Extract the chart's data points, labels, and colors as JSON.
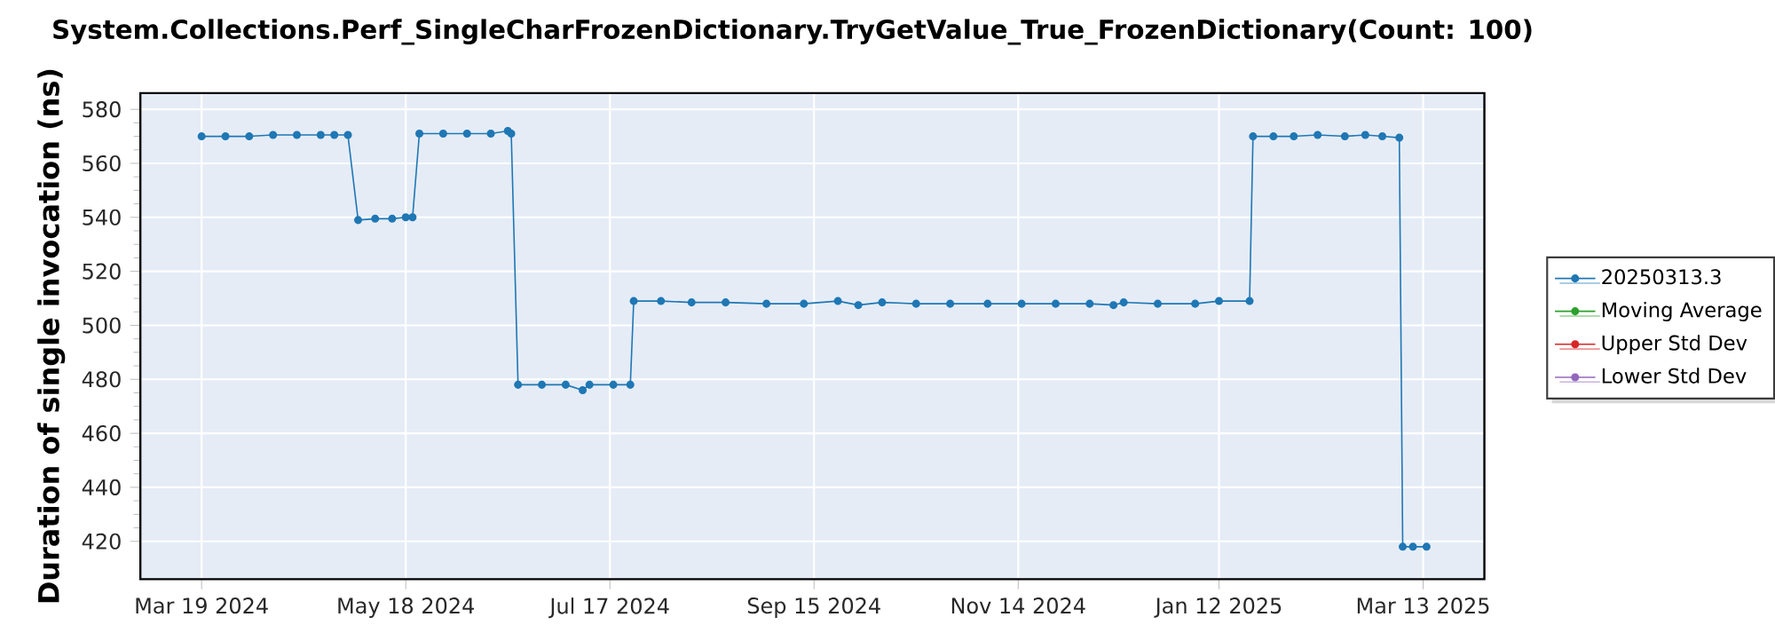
{
  "chart_data": {
    "type": "line",
    "title": "System.Collections.Perf_SingleCharFrozenDictionary.TryGetValue_True_FrozenDictionary(Count: 100)",
    "ylabel": "Duration of single invocation (ns)",
    "xlim": [
      "2024-03-01",
      "2025-03-31"
    ],
    "ylim": [
      406,
      586
    ],
    "xticks": [
      {
        "value": "2024-03-19",
        "label": "Mar 19 2024"
      },
      {
        "value": "2024-05-18",
        "label": "May 18 2024"
      },
      {
        "value": "2024-07-17",
        "label": "Jul 17 2024"
      },
      {
        "value": "2024-09-15",
        "label": "Sep 15 2024"
      },
      {
        "value": "2024-11-14",
        "label": "Nov 14 2024"
      },
      {
        "value": "2025-01-12",
        "label": "Jan 12 2025"
      },
      {
        "value": "2025-03-13",
        "label": "Mar 13 2025"
      }
    ],
    "yticks": [
      420,
      440,
      460,
      480,
      500,
      520,
      540,
      560,
      580
    ],
    "grid": true,
    "legend": "right",
    "marker": "circle",
    "line_style": "solid",
    "x": [
      "2024-03-19",
      "2024-03-26",
      "2024-04-02",
      "2024-04-09",
      "2024-04-16",
      "2024-04-23",
      "2024-04-27",
      "2024-05-01",
      "2024-05-04",
      "2024-05-09",
      "2024-05-14",
      "2024-05-18",
      "2024-05-20",
      "2024-05-22",
      "2024-05-29",
      "2024-06-05",
      "2024-06-12",
      "2024-06-17",
      "2024-06-18",
      "2024-06-20",
      "2024-06-27",
      "2024-07-04",
      "2024-07-09",
      "2024-07-11",
      "2024-07-18",
      "2024-07-23",
      "2024-07-24",
      "2024-08-01",
      "2024-08-10",
      "2024-08-20",
      "2024-09-01",
      "2024-09-12",
      "2024-09-22",
      "2024-09-28",
      "2024-10-05",
      "2024-10-15",
      "2024-10-25",
      "2024-11-05",
      "2024-11-15",
      "2024-11-25",
      "2024-12-05",
      "2024-12-12",
      "2024-12-15",
      "2024-12-25",
      "2025-01-05",
      "2025-01-12",
      "2025-01-21",
      "2025-01-22",
      "2025-01-28",
      "2025-02-03",
      "2025-02-10",
      "2025-02-18",
      "2025-02-24",
      "2025-03-01",
      "2025-03-06",
      "2025-03-07",
      "2025-03-10",
      "2025-03-14"
    ],
    "series": [
      {
        "name": "20250313.3",
        "color": "#1f77b4",
        "values": [
          570,
          570,
          570,
          570.5,
          570.5,
          570.5,
          570.5,
          570.5,
          539,
          539.5,
          539.5,
          540,
          540,
          571,
          571,
          571,
          571,
          572,
          571,
          478,
          478,
          478,
          476,
          478,
          478,
          478,
          509,
          509,
          508.5,
          508.5,
          508,
          508,
          509,
          507.5,
          508.5,
          508,
          508,
          508,
          508,
          508,
          508,
          507.5,
          508.5,
          508,
          508,
          509,
          509,
          570,
          570,
          570,
          570.5,
          570,
          570.5,
          570,
          569.5,
          418,
          418,
          418
        ]
      },
      {
        "name": "Moving Average",
        "color": "#2ca02c",
        "values": [
          null,
          null,
          null,
          null,
          null,
          null,
          null,
          null,
          null,
          null,
          null,
          null,
          null,
          null,
          null,
          null,
          null,
          null,
          null,
          null,
          null,
          null,
          null,
          null,
          null,
          null,
          null,
          null,
          null,
          null,
          null,
          null,
          null,
          null,
          null,
          null,
          null,
          null,
          null,
          null,
          null,
          null,
          null,
          null,
          null,
          null,
          null,
          null,
          null,
          null,
          null,
          null,
          null,
          null,
          null,
          null,
          null,
          null
        ]
      },
      {
        "name": "Upper Std Dev",
        "color": "#d62728",
        "values": [
          null,
          null,
          null,
          null,
          null,
          null,
          null,
          null,
          null,
          null,
          null,
          null,
          null,
          null,
          null,
          null,
          null,
          null,
          null,
          null,
          null,
          null,
          null,
          null,
          null,
          null,
          null,
          null,
          null,
          null,
          null,
          null,
          null,
          null,
          null,
          null,
          null,
          null,
          null,
          null,
          null,
          null,
          null,
          null,
          null,
          null,
          null,
          null,
          null,
          null,
          null,
          null,
          null,
          null,
          null,
          null,
          null,
          null
        ]
      },
      {
        "name": "Lower Std Dev",
        "color": "#9467bd",
        "values": [
          null,
          null,
          null,
          null,
          null,
          null,
          null,
          null,
          null,
          null,
          null,
          null,
          null,
          null,
          null,
          null,
          null,
          null,
          null,
          null,
          null,
          null,
          null,
          null,
          null,
          null,
          null,
          null,
          null,
          null,
          null,
          null,
          null,
          null,
          null,
          null,
          null,
          null,
          null,
          null,
          null,
          null,
          null,
          null,
          null,
          null,
          null,
          null,
          null,
          null,
          null,
          null,
          null,
          null,
          null,
          null,
          null,
          null
        ]
      }
    ]
  }
}
